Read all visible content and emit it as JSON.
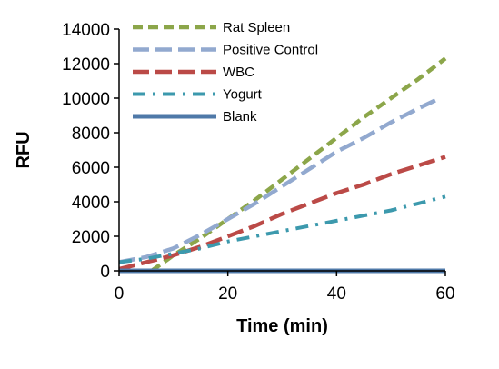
{
  "chart_data": {
    "type": "line",
    "title": "",
    "xlabel": "Time (min)",
    "ylabel": "RFU",
    "xlim": [
      0,
      60
    ],
    "ylim": [
      0,
      14000
    ],
    "xticks": [
      0,
      20,
      40,
      60
    ],
    "yticks": [
      0,
      2000,
      4000,
      6000,
      8000,
      10000,
      12000,
      14000
    ],
    "grid": false,
    "legend": "top-left",
    "series": [
      {
        "name": "Rat Spleen",
        "color": "#8ca64a",
        "dash": "dash",
        "x": [
          6,
          10,
          15,
          20,
          25,
          30,
          35,
          40,
          45,
          50,
          55,
          60
        ],
        "y": [
          0,
          900,
          1900,
          3000,
          4100,
          5300,
          6500,
          7700,
          8900,
          10000,
          11100,
          12300
        ]
      },
      {
        "name": "Positive Control",
        "color": "#92a9cf",
        "dash": "longdash",
        "x": [
          0,
          5,
          10,
          15,
          20,
          25,
          30,
          35,
          40,
          45,
          50,
          55,
          59
        ],
        "y": [
          500,
          800,
          1300,
          2100,
          3000,
          3900,
          4900,
          5900,
          6900,
          7700,
          8600,
          9400,
          10000
        ]
      },
      {
        "name": "WBC",
        "color": "#bb4a47",
        "dash": "longdash",
        "x": [
          0,
          5,
          10,
          15,
          20,
          25,
          30,
          35,
          40,
          45,
          50,
          55,
          60
        ],
        "y": [
          100,
          500,
          900,
          1400,
          2000,
          2600,
          3300,
          3900,
          4500,
          5000,
          5600,
          6100,
          6600
        ]
      },
      {
        "name": "Yogurt",
        "color": "#3c99ad",
        "dash": "dashdot",
        "x": [
          0,
          5,
          10,
          15,
          20,
          25,
          30,
          35,
          40,
          45,
          50,
          55,
          60
        ],
        "y": [
          500,
          700,
          1000,
          1300,
          1700,
          2000,
          2300,
          2600,
          2900,
          3200,
          3500,
          3900,
          4300
        ]
      },
      {
        "name": "Blank",
        "color": "#4f79a8",
        "dash": "solid",
        "x": [
          0,
          60
        ],
        "y": [
          0,
          0
        ]
      }
    ]
  }
}
